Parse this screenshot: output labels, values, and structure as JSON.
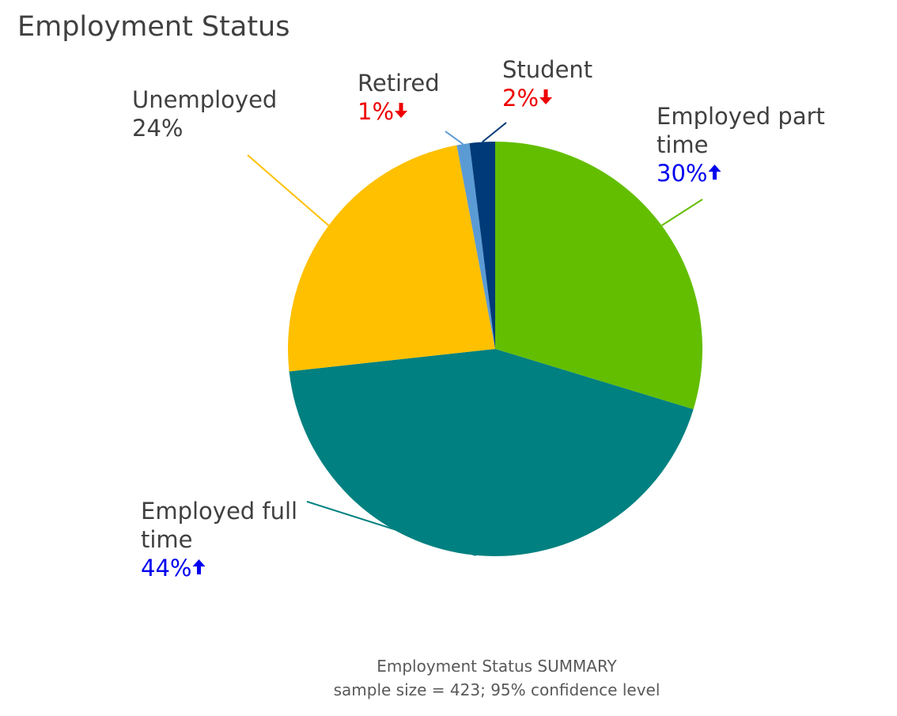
{
  "colors": {
    "title": "#404040",
    "label": "#404040",
    "up": "#0000ee",
    "down": "#ee0000",
    "footer": "#595959"
  },
  "chart_data": {
    "type": "pie",
    "title": "Employment Status",
    "start_angle_deg": 0,
    "direction": "clockwise",
    "slices": [
      {
        "label": "Employed part time",
        "value": 30,
        "value_label": "30%",
        "trend": "up",
        "color": "#63be00"
      },
      {
        "label": "Employed full time",
        "value": 44,
        "value_label": "44%",
        "trend": "up",
        "color": "#008080"
      },
      {
        "label": "Unemployed",
        "value": 24,
        "value_label": "24%",
        "trend": "none",
        "color": "#ffc000"
      },
      {
        "label": "Retired",
        "value": 1,
        "value_label": "1%",
        "trend": "down",
        "color": "#5b9bd5"
      },
      {
        "label": "Student",
        "value": 2,
        "value_label": "2%",
        "trend": "down",
        "color": "#003a78"
      }
    ],
    "footer": {
      "line1": "Employment Status SUMMARY",
      "line2": "sample size = 423; 95% confidence level"
    }
  }
}
